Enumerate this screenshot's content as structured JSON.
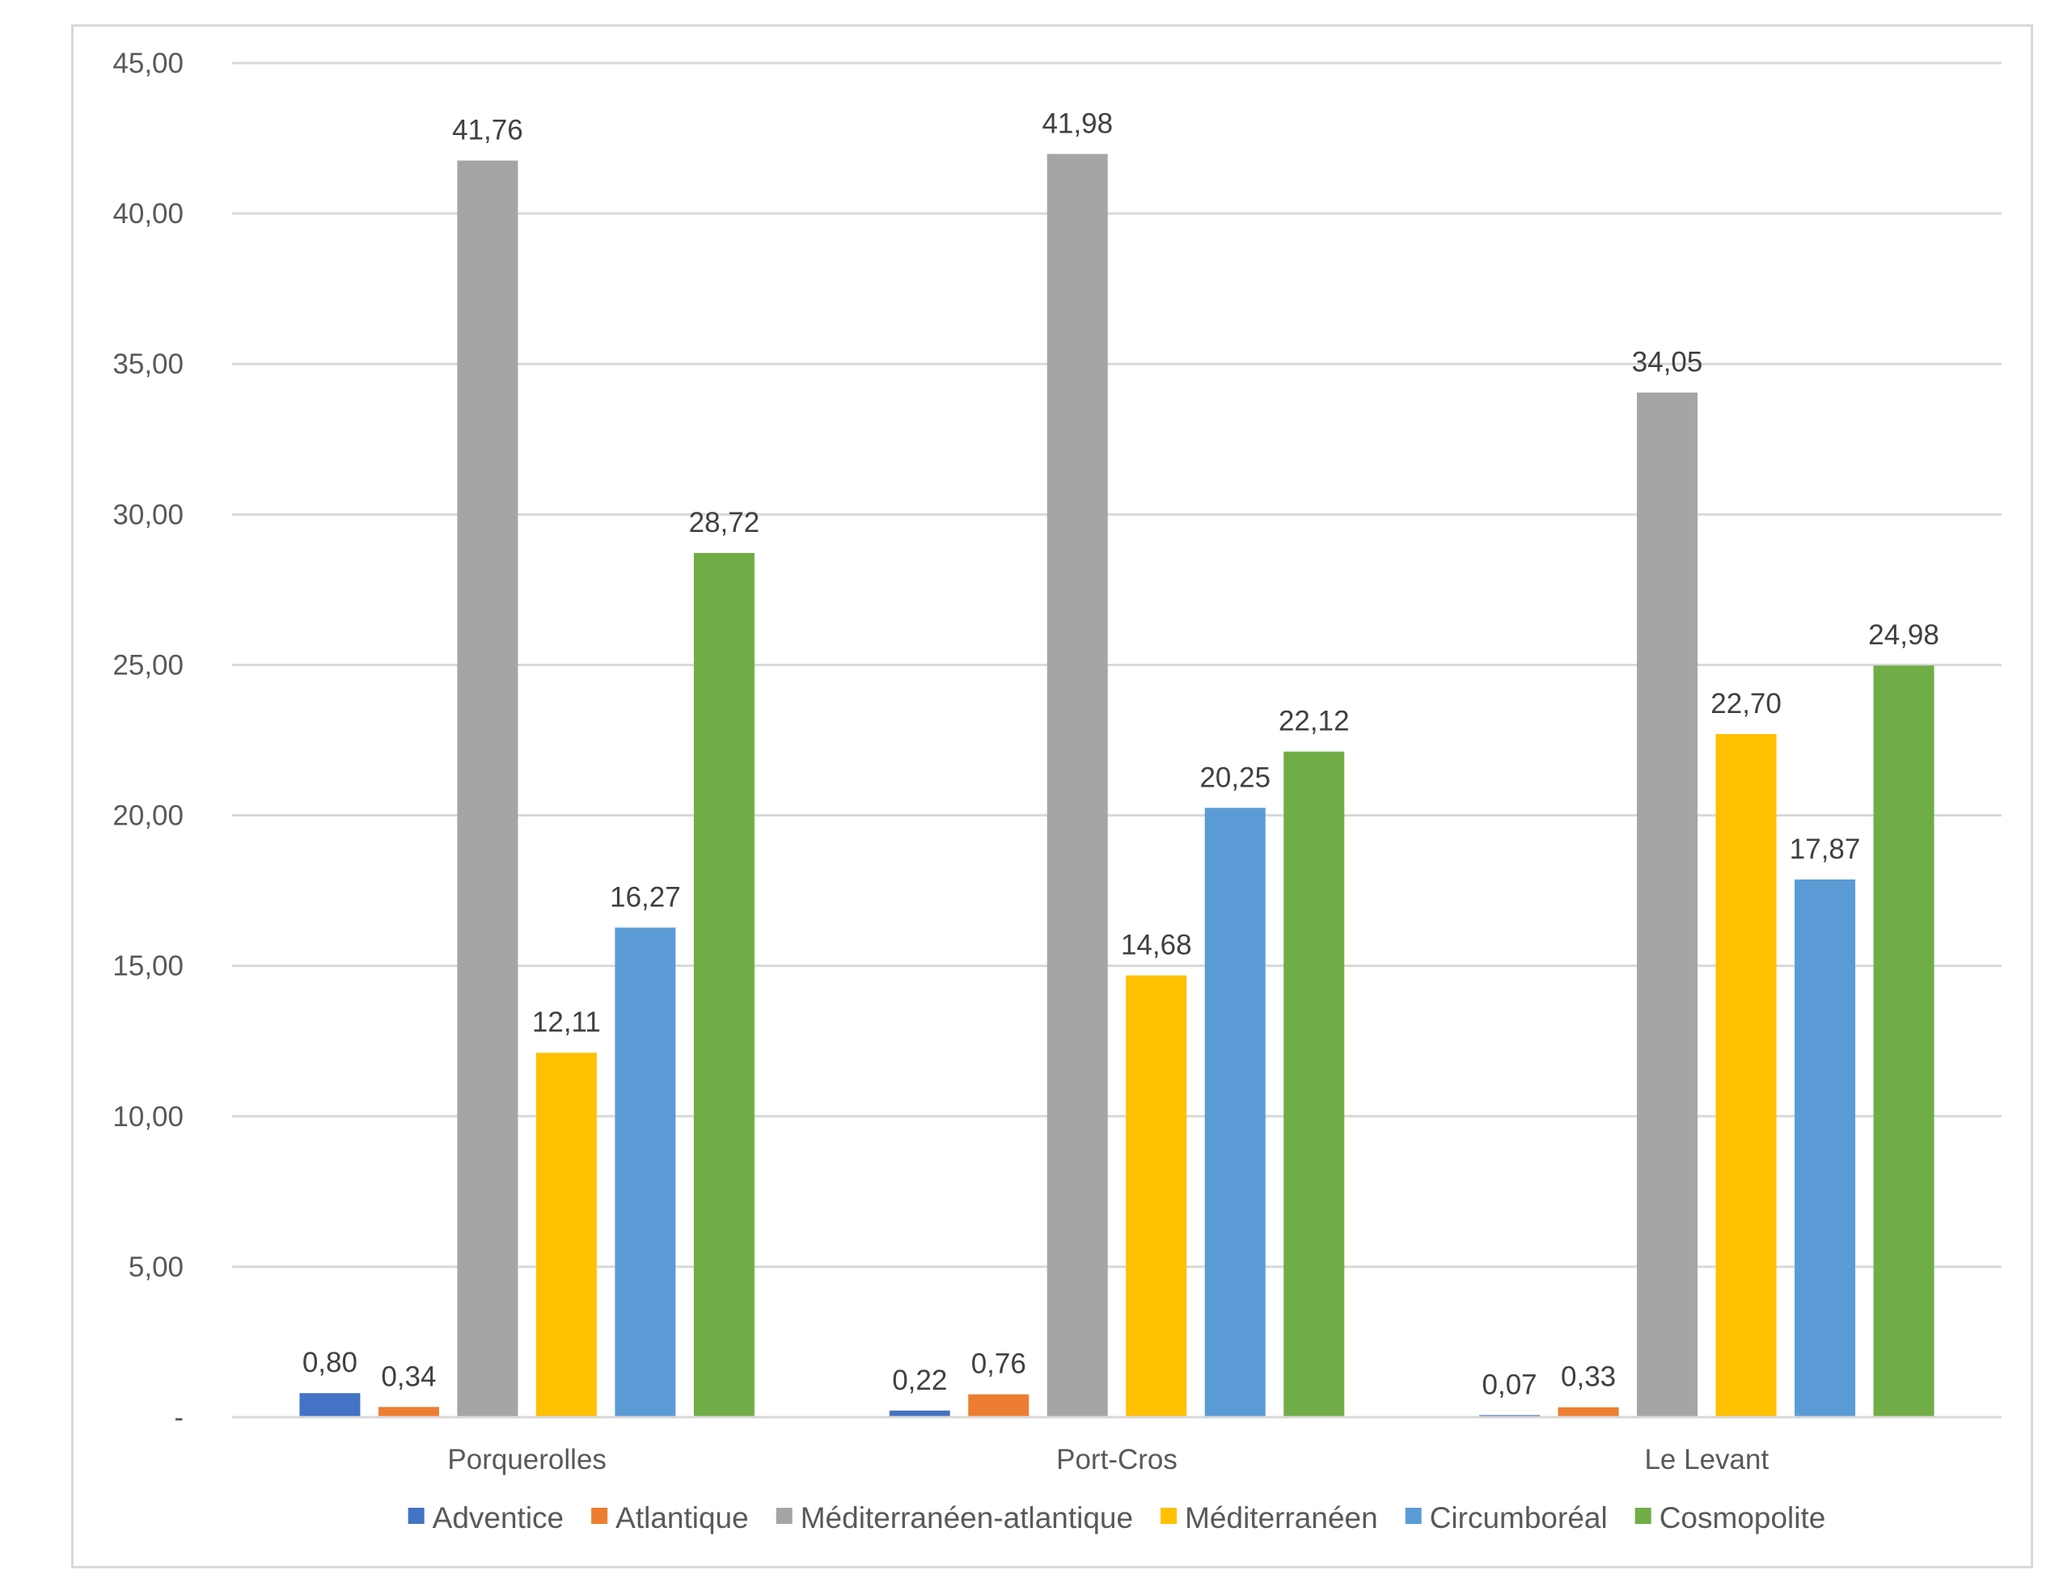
{
  "chart_data": {
    "type": "bar",
    "title": "",
    "xlabel": "",
    "ylabel": "",
    "ylim": [
      0,
      45
    ],
    "yticks": [
      "-",
      "5,00",
      "10,00",
      "15,00",
      "20,00",
      "25,00",
      "30,00",
      "35,00",
      "40,00",
      "45,00"
    ],
    "grid": true,
    "legend_position": "bottom",
    "categories": [
      "Porquerolles",
      "Port-Cros",
      "Le Levant"
    ],
    "series": [
      {
        "name": "Adventice",
        "color": "#4472c4",
        "values": [
          0.8,
          0.22,
          0.07
        ],
        "labels": [
          "0,80",
          "0,22",
          "0,07"
        ]
      },
      {
        "name": "Atlantique",
        "color": "#ed7d31",
        "values": [
          0.34,
          0.76,
          0.33
        ],
        "labels": [
          "0,34",
          "0,76",
          "0,33"
        ]
      },
      {
        "name": "Méditerranéen-atlantique",
        "color": "#a5a5a5",
        "values": [
          41.76,
          41.98,
          34.05
        ],
        "labels": [
          "41,76",
          "41,98",
          "34,05"
        ]
      },
      {
        "name": "Méditerranéen",
        "color": "#ffc000",
        "values": [
          12.11,
          14.68,
          22.7
        ],
        "labels": [
          "12,11",
          "14,68",
          "22,70"
        ]
      },
      {
        "name": "Circumboréal",
        "color": "#5b9bd5",
        "values": [
          16.27,
          20.25,
          17.87
        ],
        "labels": [
          "16,27",
          "20,25",
          "17,87"
        ]
      },
      {
        "name": "Cosmopolite",
        "color": "#70ad47",
        "values": [
          28.72,
          22.12,
          24.98
        ],
        "labels": [
          "28,72",
          "22,12",
          "24,98"
        ]
      }
    ]
  }
}
